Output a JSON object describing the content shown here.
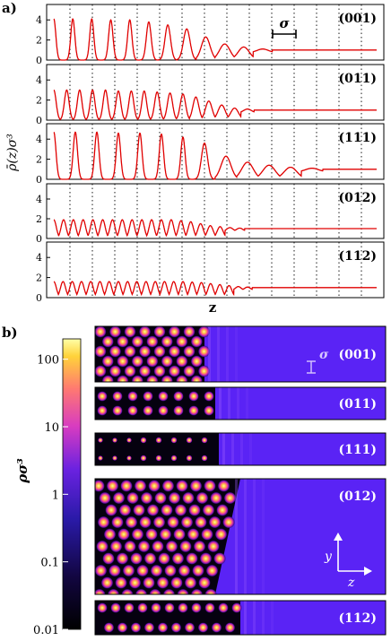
{
  "figure": {
    "panel_a_label": "a)",
    "panel_b_label": "b)",
    "sigma_label": "σ",
    "axis_a_ylabel": "ρ̄(z)σ³",
    "axis_a_xlabel": "z",
    "colorbar_label": "ρσ³",
    "axis_glyph_y": "y",
    "axis_glyph_z": "z"
  },
  "colors": {
    "curve": "#e00000",
    "empty_phase": "#5a23f5"
  },
  "chart_data": [
    {
      "type": "line",
      "panel": "a",
      "title": "(001)",
      "ylim": [
        0,
        5
      ],
      "yticks": [
        0,
        2,
        4
      ],
      "x": [
        0,
        1,
        2,
        3,
        4,
        5,
        6,
        7,
        8,
        9,
        10,
        11,
        12,
        13,
        14,
        15,
        16,
        17
      ],
      "series": [
        {
          "values": [
            4.1,
            4.1,
            4.1,
            4.0,
            4.0,
            3.8,
            3.5,
            3.1,
            2.3,
            1.6,
            1.3,
            1.1,
            1.0,
            1.0,
            1.0,
            1.0,
            1.0,
            1.0
          ]
        }
      ]
    },
    {
      "type": "line",
      "panel": "a",
      "title": "(011)",
      "ylim": [
        0,
        5
      ],
      "yticks": [
        0,
        2,
        4
      ],
      "x": [
        0,
        1,
        2,
        3,
        4,
        5,
        6,
        7,
        8,
        9,
        10,
        11,
        12,
        13,
        14,
        15,
        16,
        17,
        18,
        19,
        20,
        21,
        22,
        23,
        24,
        25
      ],
      "series": [
        {
          "values": [
            3.0,
            3.0,
            3.0,
            3.0,
            3.0,
            2.9,
            2.9,
            2.9,
            2.8,
            2.7,
            2.6,
            2.3,
            1.9,
            1.5,
            1.2,
            1.1,
            1.0,
            1.0,
            1.0,
            1.0,
            1.0,
            1.0,
            1.0,
            1.0,
            1.0,
            1.0
          ]
        }
      ]
    },
    {
      "type": "line",
      "panel": "a",
      "title": "(111)",
      "ylim": [
        0,
        5
      ],
      "yticks": [
        0,
        2,
        4
      ],
      "x": [
        0,
        1,
        2,
        3,
        4,
        5,
        6,
        7,
        8,
        9,
        10,
        11,
        12,
        13,
        14,
        15
      ],
      "series": [
        {
          "values": [
            4.7,
            4.7,
            4.7,
            4.6,
            4.6,
            4.5,
            4.2,
            3.6,
            2.3,
            1.7,
            1.4,
            1.2,
            1.1,
            1.0,
            1.0,
            1.0
          ]
        }
      ]
    },
    {
      "type": "line",
      "panel": "a",
      "title": "(012)",
      "ylim": [
        0,
        5
      ],
      "yticks": [
        0,
        2,
        4
      ],
      "x": [
        0,
        1,
        2,
        3,
        4,
        5,
        6,
        7,
        8,
        9,
        10,
        11,
        12,
        13,
        14,
        15,
        16,
        17,
        18,
        19,
        20,
        21,
        22,
        23,
        24,
        25,
        26,
        27,
        28,
        29,
        30,
        31,
        32,
        33
      ],
      "series": [
        {
          "values": [
            1.9,
            1.9,
            1.9,
            1.9,
            1.9,
            1.9,
            1.9,
            1.9,
            1.9,
            1.9,
            1.9,
            1.9,
            1.9,
            1.8,
            1.7,
            1.5,
            1.3,
            1.2,
            1.1,
            1.05,
            1.0,
            1.0,
            1.0,
            1.0,
            1.0,
            1.0,
            1.0,
            1.0,
            1.0,
            1.0,
            1.0,
            1.0,
            1.0,
            1.0
          ]
        }
      ]
    },
    {
      "type": "line",
      "panel": "a",
      "title": "(112)",
      "ylim": [
        0,
        5
      ],
      "yticks": [
        0,
        2,
        4
      ],
      "x": [
        0,
        1,
        2,
        3,
        4,
        5,
        6,
        7,
        8,
        9,
        10,
        11,
        12,
        13,
        14,
        15,
        16,
        17,
        18,
        19,
        20,
        21,
        22,
        23,
        24,
        25,
        26,
        27,
        28,
        29,
        30,
        31,
        32,
        33,
        34,
        35
      ],
      "series": [
        {
          "values": [
            1.6,
            1.6,
            1.6,
            1.6,
            1.6,
            1.6,
            1.6,
            1.6,
            1.6,
            1.6,
            1.6,
            1.6,
            1.6,
            1.6,
            1.6,
            1.55,
            1.5,
            1.4,
            1.3,
            1.2,
            1.1,
            1.05,
            1.0,
            1.0,
            1.0,
            1.0,
            1.0,
            1.0,
            1.0,
            1.0,
            1.0,
            1.0,
            1.0,
            1.0,
            1.0,
            1.0
          ]
        }
      ]
    },
    {
      "type": "heatmap",
      "panel": "b",
      "title": "(001)",
      "lattice": "square"
    },
    {
      "type": "heatmap",
      "panel": "b",
      "title": "(011)",
      "lattice": "rect"
    },
    {
      "type": "heatmap",
      "panel": "b",
      "title": "(111)",
      "lattice": "rect"
    },
    {
      "type": "heatmap",
      "panel": "b",
      "title": "(012)",
      "lattice": "oblique"
    },
    {
      "type": "heatmap",
      "panel": "b",
      "title": "(112)",
      "lattice": "rect"
    },
    {
      "type": "colorbar",
      "panel": "b",
      "scale": "log",
      "range": [
        0.01,
        200
      ],
      "ticks": [
        0.01,
        0.1,
        1,
        10,
        100
      ],
      "tick_labels": [
        "0.01",
        "0.1",
        "1",
        "10",
        "100"
      ]
    }
  ]
}
